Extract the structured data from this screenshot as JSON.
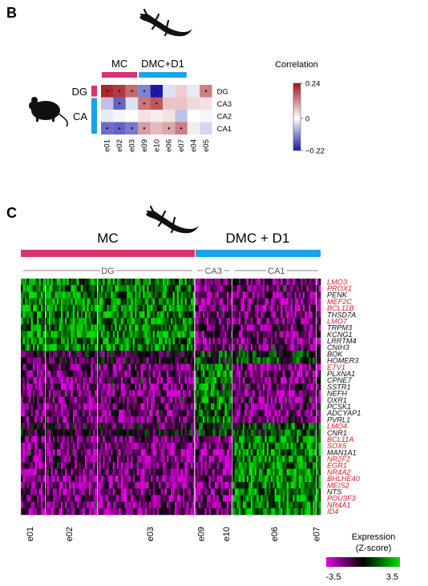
{
  "panels": {
    "b_letter": "B",
    "c_letter": "C"
  },
  "colors": {
    "mc": "#d8336e",
    "dmc": "#1aa3e8",
    "corr_pos": "#a3121a",
    "corr_neg": "#1a1aa8",
    "expr_low": "#e000e0",
    "expr_mid": "#000000",
    "expr_high": "#00e000",
    "red_gene": "#d81e2c"
  },
  "icons": {
    "lizard": "lizard-icon",
    "mouse": "mouse-icon"
  },
  "chart_data": [
    {
      "type": "heatmap",
      "title": "",
      "columns": [
        "e01",
        "e02",
        "e03",
        "e09",
        "e10",
        "e06",
        "e07",
        "e04",
        "e05"
      ],
      "rows": [
        "DG",
        "CA3",
        "CA2",
        "CA1"
      ],
      "column_groups": [
        {
          "label": "MC",
          "columns": [
            "e01",
            "e02",
            "e03"
          ],
          "color": "#d8336e"
        },
        {
          "label": "DMC+D1",
          "columns": [
            "e09",
            "e10",
            "e06",
            "e07"
          ],
          "color": "#1aa3e8"
        }
      ],
      "row_groups": [
        {
          "label": "DG",
          "rows": [
            "DG"
          ],
          "color": "#d8336e"
        },
        {
          "label": "CA",
          "rows": [
            "CA3",
            "CA2",
            "CA1"
          ],
          "color": "#1aa3e8"
        }
      ],
      "values": [
        [
          0.22,
          0.2,
          0.15,
          -0.12,
          -0.22,
          -0.03,
          0.05,
          -0.02,
          0.13
        ],
        [
          -0.06,
          -0.15,
          -0.03,
          0.14,
          0.17,
          0.06,
          0.06,
          0.04,
          0.03
        ],
        [
          -0.02,
          -0.01,
          0.0,
          0.03,
          0.02,
          0.03,
          -0.06,
          0.0,
          -0.01
        ],
        [
          -0.14,
          -0.15,
          -0.13,
          0.1,
          0.07,
          0.09,
          0.13,
          0.02,
          -0.04
        ]
      ],
      "significant": [
        [
          1,
          1,
          1,
          1,
          1,
          0,
          0,
          0,
          1
        ],
        [
          0,
          1,
          0,
          1,
          1,
          0,
          0,
          0,
          0
        ],
        [
          0,
          0,
          0,
          0,
          0,
          0,
          0,
          0,
          0
        ],
        [
          1,
          1,
          1,
          1,
          0,
          1,
          1,
          0,
          0
        ]
      ],
      "colorbar": {
        "label": "Correlation",
        "min": -0.22,
        "max": 0.24,
        "ticks": [
          {
            "v": 0.24,
            "label": "0.24"
          },
          {
            "v": 0,
            "label": "0"
          },
          {
            "v": -0.22,
            "label": "−0.22"
          }
        ]
      }
    },
    {
      "type": "heatmap",
      "title": "",
      "column_groups": [
        {
          "label": "MC",
          "color": "#d8336e",
          "start": 0,
          "end": 0.58
        },
        {
          "label": "DMC + D1",
          "color": "#1aa3e8",
          "start": 0.58,
          "end": 1
        }
      ],
      "column_subgroups": [
        {
          "label": "DG",
          "start": 0,
          "end": 0.58
        },
        {
          "label": "CA3",
          "start": 0.58,
          "end": 0.705
        },
        {
          "label": "CA1",
          "start": 0.705,
          "end": 1
        }
      ],
      "column_ticks": [
        {
          "label": "e01",
          "pos": 0.03
        },
        {
          "label": "e02",
          "pos": 0.16
        },
        {
          "label": "e03",
          "pos": 0.43
        },
        {
          "label": "e09",
          "pos": 0.6
        },
        {
          "label": "e10",
          "pos": 0.685
        },
        {
          "label": "e06",
          "pos": 0.845
        },
        {
          "label": "e07",
          "pos": 0.985
        }
      ],
      "genes": [
        {
          "name": "LMO3",
          "red": true
        },
        {
          "name": "PROX1",
          "red": true
        },
        {
          "name": "PENK",
          "red": false
        },
        {
          "name": "MEF2C",
          "red": true
        },
        {
          "name": "BCL11B",
          "red": true
        },
        {
          "name": "THSD7A",
          "red": false
        },
        {
          "name": "LMO7",
          "red": true
        },
        {
          "name": "TRPM3",
          "red": false
        },
        {
          "name": "KCNG1",
          "red": false
        },
        {
          "name": "LRRTM4",
          "red": false
        },
        {
          "name": "CNIH3",
          "red": false
        },
        {
          "name": "BOK",
          "red": false
        },
        {
          "name": "HOMER3",
          "red": false
        },
        {
          "name": "ETV1",
          "red": true
        },
        {
          "name": "PLXNA1",
          "red": false
        },
        {
          "name": "CPNE7",
          "red": false
        },
        {
          "name": "SSTR1",
          "red": false
        },
        {
          "name": "NEFH",
          "red": false
        },
        {
          "name": "OXR1",
          "red": false
        },
        {
          "name": "PCSK1",
          "red": false
        },
        {
          "name": "ADCYAP1",
          "red": false
        },
        {
          "name": "PVRL1",
          "red": false
        },
        {
          "name": "LMO4",
          "red": true
        },
        {
          "name": "CNR1",
          "red": false
        },
        {
          "name": "BCL11A",
          "red": true
        },
        {
          "name": "SOX5",
          "red": true
        },
        {
          "name": "MAN1A1",
          "red": false
        },
        {
          "name": "NR2F2",
          "red": true
        },
        {
          "name": "EGR1",
          "red": true
        },
        {
          "name": "NR4A2",
          "red": true
        },
        {
          "name": "BHLHE40",
          "red": true
        },
        {
          "name": "MEIS2",
          "red": true
        },
        {
          "name": "NTS",
          "red": false
        },
        {
          "name": "POU3F3",
          "red": true
        },
        {
          "name": "NR4A1",
          "red": true
        },
        {
          "name": "ID4",
          "red": true
        }
      ],
      "gene_patterns": [
        "dg",
        "dg",
        "dg",
        "dg",
        "dg",
        "dg",
        "dg",
        "dg",
        "dg",
        "dg",
        "dg",
        "mix",
        "mix",
        "ca3",
        "ca3",
        "ca3",
        "ca3",
        "ca3",
        "ca3",
        "ca3",
        "ca3",
        "ca3",
        "mix",
        "mix",
        "ca1",
        "ca1",
        "ca1",
        "ca1",
        "ca1",
        "ca1",
        "ca1",
        "ca1",
        "ca1",
        "ca1",
        "ca1",
        "ca1"
      ],
      "colorbar": {
        "label_line1": "Expression",
        "label_line2": "(Z-score)",
        "min": -3.5,
        "max": 3.5,
        "min_label": "-3.5",
        "max_label": "3.5"
      }
    }
  ]
}
